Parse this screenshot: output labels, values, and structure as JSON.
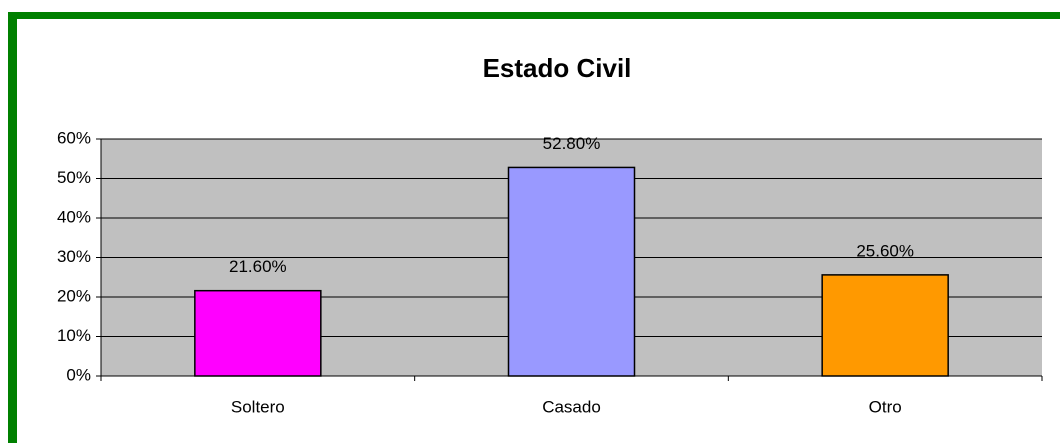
{
  "chart_data": {
    "type": "bar",
    "title": "Estado Civil",
    "categories": [
      "Soltero",
      "Casado",
      "Otro"
    ],
    "values": [
      21.6,
      52.8,
      25.6
    ],
    "value_labels": [
      "21.60%",
      "52.80%",
      "25.60%"
    ],
    "colors": [
      "#ff00ff",
      "#9999ff",
      "#ff9900"
    ],
    "ylim": [
      0,
      60
    ],
    "yticks": [
      {
        "value": 0,
        "label": "0%"
      },
      {
        "value": 10,
        "label": "10%"
      },
      {
        "value": 20,
        "label": "20%"
      },
      {
        "value": 30,
        "label": "30%"
      },
      {
        "value": 40,
        "label": "40%"
      },
      {
        "value": 50,
        "label": "50%"
      },
      {
        "value": 60,
        "label": "60%"
      }
    ],
    "grid": true
  }
}
